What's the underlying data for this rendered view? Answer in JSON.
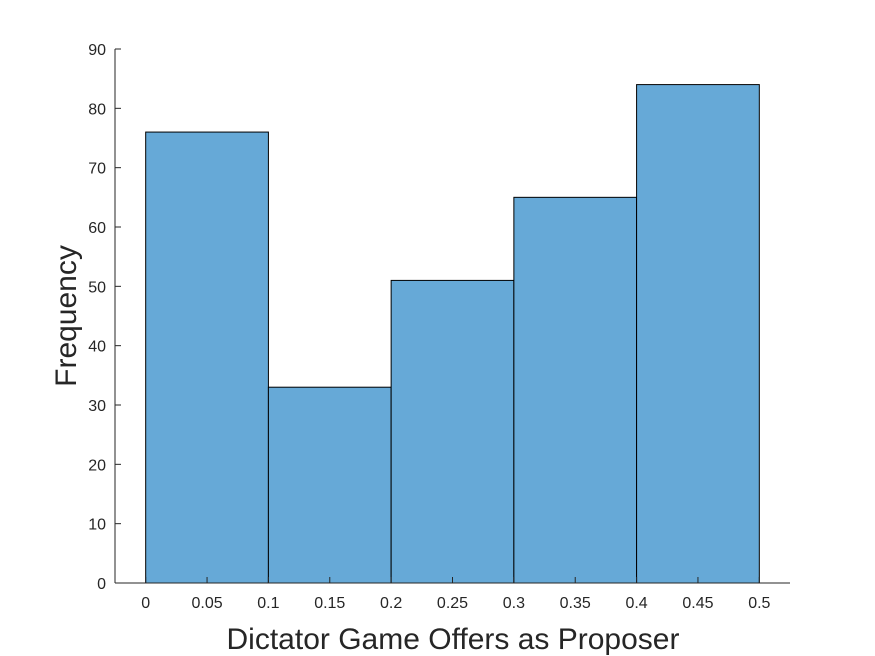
{
  "chart_data": {
    "type": "bar",
    "subtype": "histogram",
    "bin_edges": [
      0,
      0.1,
      0.2,
      0.3,
      0.4,
      0.5
    ],
    "values": [
      76,
      33,
      51,
      65,
      84
    ],
    "xlabel": "Dictator Game Offers as Proposer",
    "ylabel": "Frequency",
    "xlim": [
      -0.025,
      0.525
    ],
    "ylim": [
      0,
      90
    ],
    "x_ticks": [
      "0",
      "0.05",
      "0.1",
      "0.15",
      "0.2",
      "0.25",
      "0.3",
      "0.35",
      "0.4",
      "0.45",
      "0.5"
    ],
    "y_ticks": [
      "0",
      "10",
      "20",
      "30",
      "40",
      "50",
      "60",
      "70",
      "80",
      "90"
    ],
    "bar_color": "#66A9D7",
    "edge_color": "#000000",
    "grid": false
  }
}
